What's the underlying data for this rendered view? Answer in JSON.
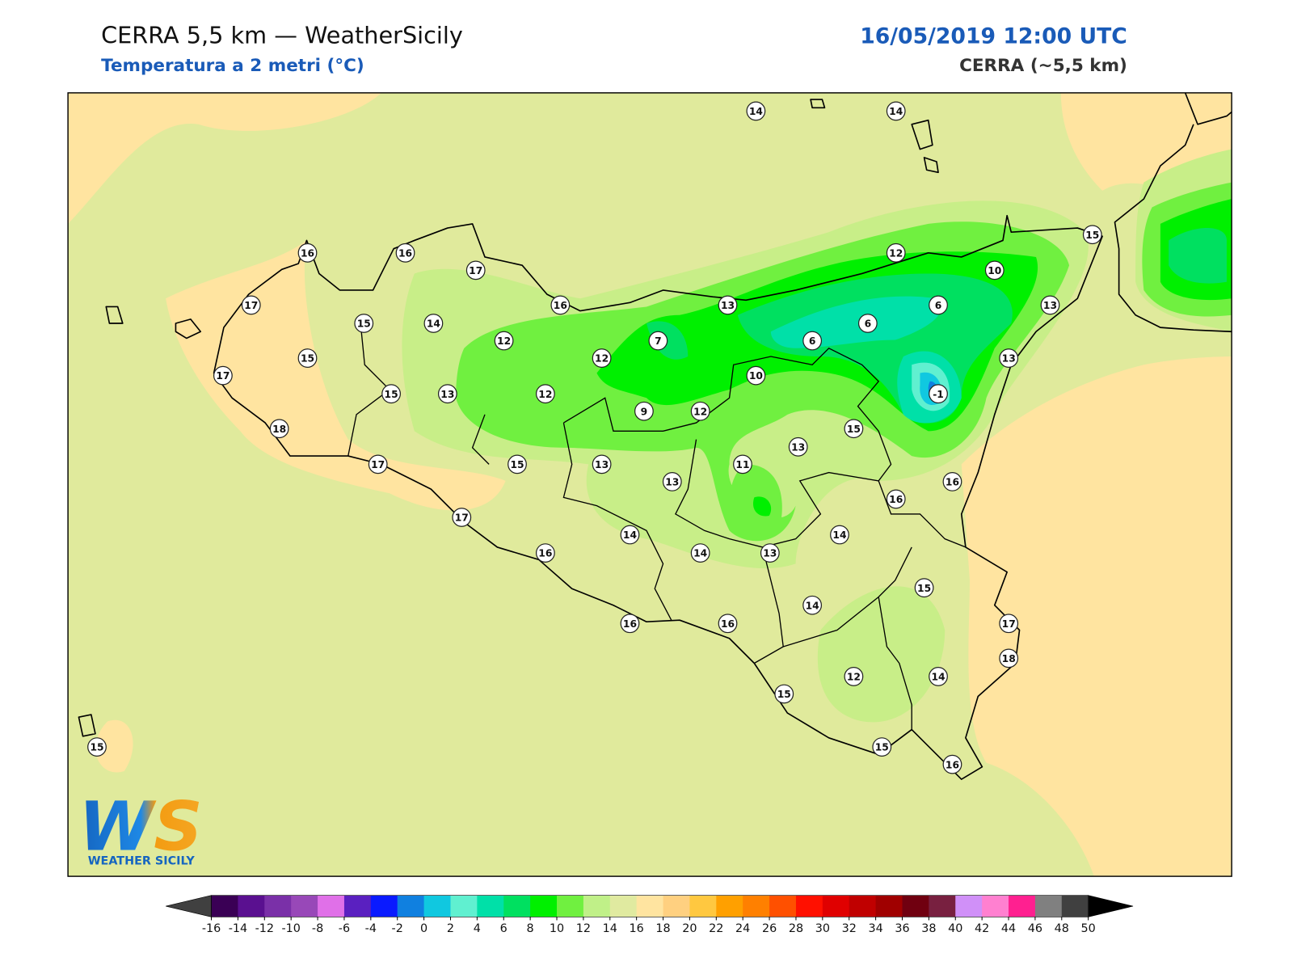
{
  "header": {
    "title": "CERRA 5,5 km — WeatherSicily",
    "subtitle": "Temperatura a 2 metri (°C)",
    "datetime": "16/05/2019 12:00 UTC",
    "model": "CERRA (~5,5 km)"
  },
  "stations": [
    14,
    14,
    16,
    16,
    17,
    17,
    15,
    14,
    16,
    13,
    12,
    10,
    15,
    13,
    6,
    6,
    6,
    7,
    12,
    12,
    15,
    17,
    15,
    13,
    12,
    10,
    -1,
    13,
    9,
    12,
    18,
    15,
    13,
    17,
    15,
    13,
    13,
    11,
    16,
    16,
    17,
    14,
    14,
    16,
    14,
    13,
    15,
    14,
    16,
    16,
    17,
    18,
    12,
    14,
    15,
    15,
    16,
    15
  ],
  "colorbar": {
    "ticks": [
      -16,
      -14,
      -12,
      -10,
      -8,
      -6,
      -4,
      -2,
      0,
      2,
      4,
      6,
      8,
      10,
      12,
      14,
      16,
      18,
      20,
      22,
      24,
      26,
      28,
      30,
      32,
      34,
      36,
      38,
      40,
      42,
      44,
      46,
      48,
      50
    ],
    "colors": [
      "#3a0055",
      "#5a1090",
      "#7a30a8",
      "#9848b8",
      "#e070e8",
      "#5a20c0",
      "#0a1aff",
      "#1080e0",
      "#10c8e0",
      "#60f0d0",
      "#00e0a8",
      "#00e060",
      "#00f000",
      "#70f040",
      "#c0f088",
      "#e0eaa0",
      "#ffe4a0",
      "#ffd080",
      "#ffc840",
      "#ffa000",
      "#ff8000",
      "#ff5000",
      "#ff1000",
      "#e00000",
      "#c00000",
      "#a00000",
      "#700010",
      "#782040",
      "#d090f8",
      "#ff80d0",
      "#ff2090",
      "#808080",
      "#404040"
    ],
    "under_color": "#404040",
    "over_color": "#000000"
  },
  "logo": {
    "mark": "WS",
    "name": "WEATHER SICILY"
  }
}
